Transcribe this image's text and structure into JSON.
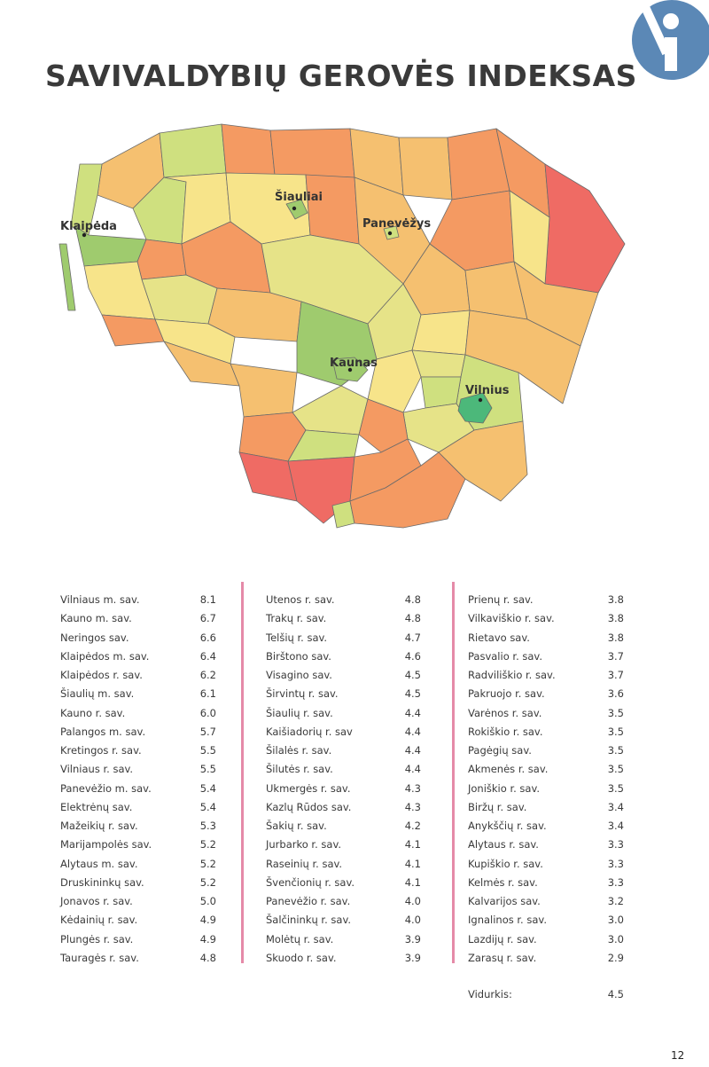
{
  "title": "SAVIVALDYBIŲ GEROVĖS INDEKSAS",
  "page_number": "12",
  "colors": {
    "highest": "#4cb87a",
    "high": "#9fcb6e",
    "mid_high": "#cfe07f",
    "mid": "#f7e48a",
    "mid_low": "#f5c070",
    "low": "#f49a62",
    "lowest": "#ef6b64",
    "logo": "#5b88b6",
    "separator": "#e58aa8"
  },
  "map": {
    "cities": {
      "klaipeda": "Klaipėda",
      "siauliai": "Šiauliai",
      "panevezys": "Panevėžys",
      "kaunas": "Kaunas",
      "vilnius": "Vilnius"
    }
  },
  "table": {
    "col1": [
      {
        "name": "Vilniaus m. sav.",
        "value": "8.1"
      },
      {
        "name": "Kauno m. sav.",
        "value": "6.7"
      },
      {
        "name": "Neringos sav.",
        "value": "6.6"
      },
      {
        "name": "Klaipėdos m. sav.",
        "value": "6.4"
      },
      {
        "name": "Klaipėdos r. sav.",
        "value": "6.2"
      },
      {
        "name": "Šiaulių m. sav.",
        "value": "6.1"
      },
      {
        "name": "Kauno r. sav.",
        "value": "6.0"
      },
      {
        "name": "Palangos m. sav.",
        "value": "5.7"
      },
      {
        "name": "Kretingos r. sav.",
        "value": "5.5"
      },
      {
        "name": "Vilniaus r. sav.",
        "value": "5.5"
      },
      {
        "name": "Panevėžio m. sav.",
        "value": "5.4"
      },
      {
        "name": "Elektrėnų sav.",
        "value": "5.4"
      },
      {
        "name": "Mažeikių r. sav.",
        "value": "5.3"
      },
      {
        "name": "Marijampolės sav.",
        "value": "5.2"
      },
      {
        "name": "Alytaus m. sav.",
        "value": "5.2"
      },
      {
        "name": "Druskininkų sav.",
        "value": "5.2"
      },
      {
        "name": "Jonavos r. sav.",
        "value": "5.0"
      },
      {
        "name": "Kėdainių r. sav.",
        "value": "4.9"
      },
      {
        "name": "Plungės r. sav.",
        "value": "4.9"
      },
      {
        "name": "Tauragės r. sav.",
        "value": "4.8"
      }
    ],
    "col2": [
      {
        "name": "Utenos r. sav.",
        "value": "4.8"
      },
      {
        "name": "Trakų r. sav.",
        "value": "4.8"
      },
      {
        "name": "Telšių r. sav.",
        "value": "4.7"
      },
      {
        "name": "Birštono sav.",
        "value": "4.6"
      },
      {
        "name": "Visagino sav.",
        "value": "4.5"
      },
      {
        "name": "Širvintų r. sav.",
        "value": "4.5"
      },
      {
        "name": "Šiaulių r. sav.",
        "value": "4.4"
      },
      {
        "name": "Kaišiadorių r. sav",
        "value": "4.4"
      },
      {
        "name": "Šilalės r. sav.",
        "value": "4.4"
      },
      {
        "name": "Šilutės r. sav.",
        "value": "4.4"
      },
      {
        "name": "Ukmergės r. sav.",
        "value": "4.3"
      },
      {
        "name": "Kazlų Rūdos sav.",
        "value": "4.3"
      },
      {
        "name": "Šakių r. sav.",
        "value": "4.2"
      },
      {
        "name": "Jurbarko r. sav.",
        "value": "4.1"
      },
      {
        "name": "Raseinių r. sav.",
        "value": "4.1"
      },
      {
        "name": "Švenčionių r. sav.",
        "value": "4.1"
      },
      {
        "name": "Panevėžio r. sav.",
        "value": "4.0"
      },
      {
        "name": "Šalčininkų r. sav.",
        "value": "4.0"
      },
      {
        "name": "Molėtų r. sav.",
        "value": "3.9"
      },
      {
        "name": "Skuodo r. sav.",
        "value": "3.9"
      }
    ],
    "col3": [
      {
        "name": "Prienų r. sav.",
        "value": "3.8"
      },
      {
        "name": "Vilkaviškio r. sav.",
        "value": "3.8"
      },
      {
        "name": "Rietavo sav.",
        "value": "3.8"
      },
      {
        "name": "Pasvalio r. sav.",
        "value": "3.7"
      },
      {
        "name": "Radviliškio r. sav.",
        "value": "3.7"
      },
      {
        "name": "Pakruojo r. sav.",
        "value": "3.6"
      },
      {
        "name": "Varėnos r. sav.",
        "value": "3.5"
      },
      {
        "name": "Rokiškio r. sav.",
        "value": "3.5"
      },
      {
        "name": "Pagėgių sav.",
        "value": "3.5"
      },
      {
        "name": "Akmenės r. sav.",
        "value": "3.5"
      },
      {
        "name": "Joniškio r. sav.",
        "value": "3.5"
      },
      {
        "name": "Biržų r. sav.",
        "value": "3.4"
      },
      {
        "name": "Anykščių r. sav.",
        "value": "3.4"
      },
      {
        "name": "Alytaus r. sav.",
        "value": "3.3"
      },
      {
        "name": "Kupiškio r. sav.",
        "value": "3.3"
      },
      {
        "name": "Kelmės r. sav.",
        "value": "3.3"
      },
      {
        "name": "Kalvarijos sav.",
        "value": "3.2"
      },
      {
        "name": "Ignalinos r. sav.",
        "value": "3.0"
      },
      {
        "name": "Lazdijų r. sav.",
        "value": "3.0"
      },
      {
        "name": "Zarasų r. sav.",
        "value": "2.9"
      }
    ],
    "average_label": "Vidurkis:",
    "average_value": "4.5"
  }
}
